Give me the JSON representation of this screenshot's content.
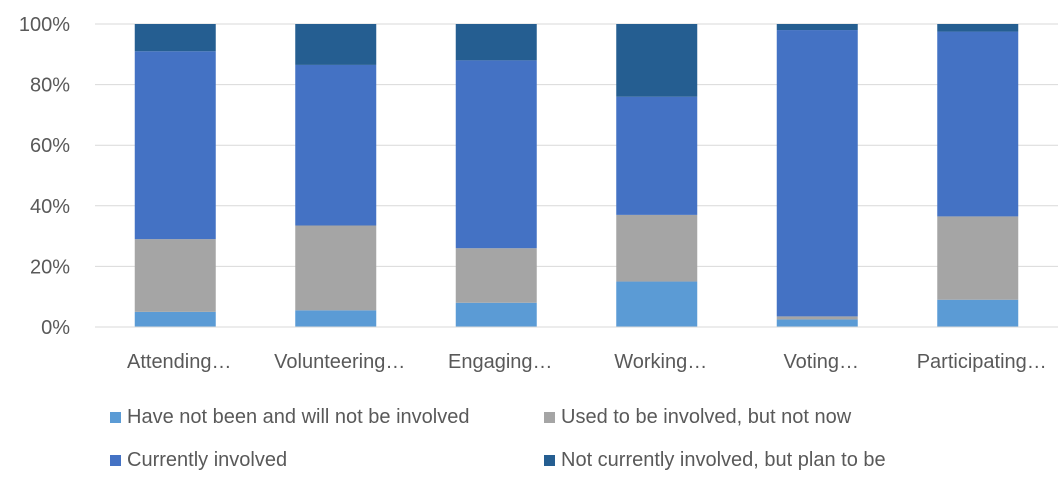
{
  "chart_data": {
    "type": "bar",
    "stacked": true,
    "percent": true,
    "categories": [
      "Attending…",
      "Volunteering…",
      "Engaging…",
      "Working…",
      "Voting…",
      "Participating…"
    ],
    "series": [
      {
        "name": "Have not been and will not be involved",
        "color": "#5B9BD5",
        "values": [
          5,
          5.5,
          8,
          15,
          2.5,
          9
        ]
      },
      {
        "name": "Used to be involved, but not now",
        "color": "#A5A5A5",
        "values": [
          24,
          28,
          18,
          22,
          1,
          27.5
        ]
      },
      {
        "name": "Currently involved",
        "color": "#4472C4",
        "values": [
          62,
          53,
          62,
          39,
          94.5,
          61
        ]
      },
      {
        "name": "Not currently involved, but plan to be",
        "color": "#255E91",
        "values": [
          9,
          13.5,
          12,
          24,
          2,
          2.5
        ]
      }
    ],
    "yticks": [
      "0%",
      "20%",
      "40%",
      "60%",
      "80%",
      "100%"
    ],
    "ylim": [
      0,
      100
    ],
    "grid": true,
    "legend_position": "bottom"
  }
}
